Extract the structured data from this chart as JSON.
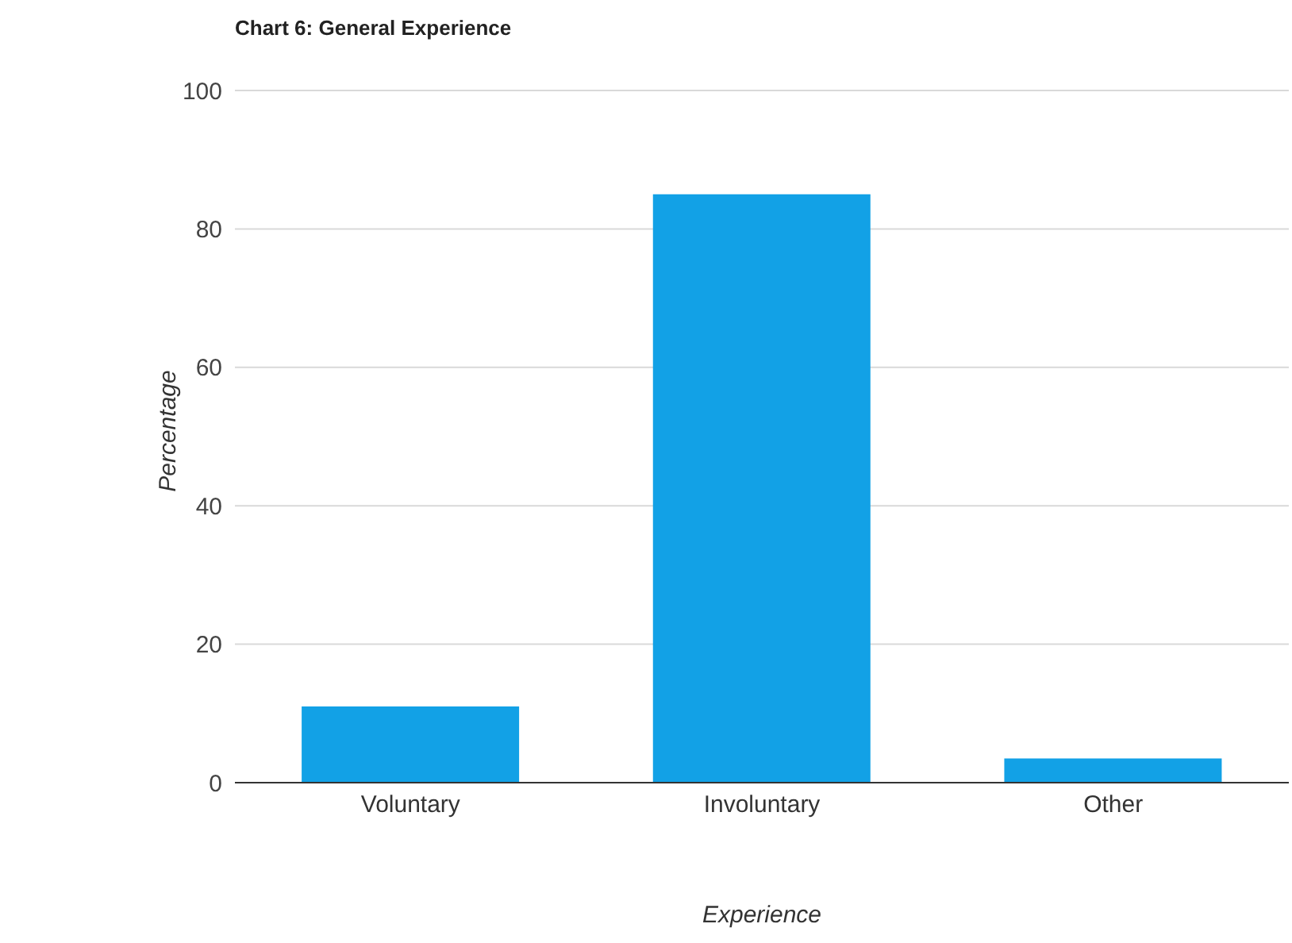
{
  "chart_data": {
    "type": "bar",
    "title": "Chart 6: General Experience",
    "xlabel": "Experience",
    "ylabel": "Percentage",
    "categories": [
      "Voluntary",
      "Involuntary",
      "Other"
    ],
    "values": [
      11,
      85,
      3.5
    ],
    "color": "#12a1e6",
    "ylim": [
      0,
      100
    ],
    "yticks": [
      0,
      20,
      40,
      60,
      80,
      100
    ],
    "grid": "y"
  }
}
